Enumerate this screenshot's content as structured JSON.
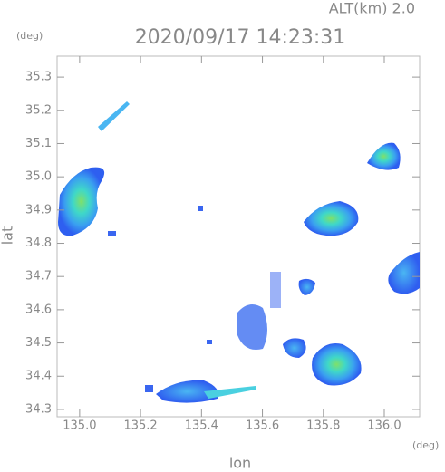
{
  "chart_data": {
    "type": "map",
    "title": "2020/09/17 14:23:31",
    "annotation": "ALT(km) 2.0",
    "x_label": "lon",
    "y_label": "lat",
    "x_unit": "(deg)",
    "y_unit": "(deg)",
    "xlim": [
      134.926,
      136.116
    ],
    "ylim": [
      34.278,
      35.363
    ],
    "xticks": [
      {
        "value": 135,
        "label": "135.0"
      },
      135.2,
      135.4,
      135.6,
      135.8,
      {
        "value": 136,
        "label": "136.0"
      }
    ],
    "yticks": [
      34.3,
      34.4,
      34.5,
      34.6,
      34.7,
      34.8,
      34.9,
      {
        "value": 35,
        "label": "35.0"
      },
      35.1,
      35.2,
      35.3
    ]
  }
}
